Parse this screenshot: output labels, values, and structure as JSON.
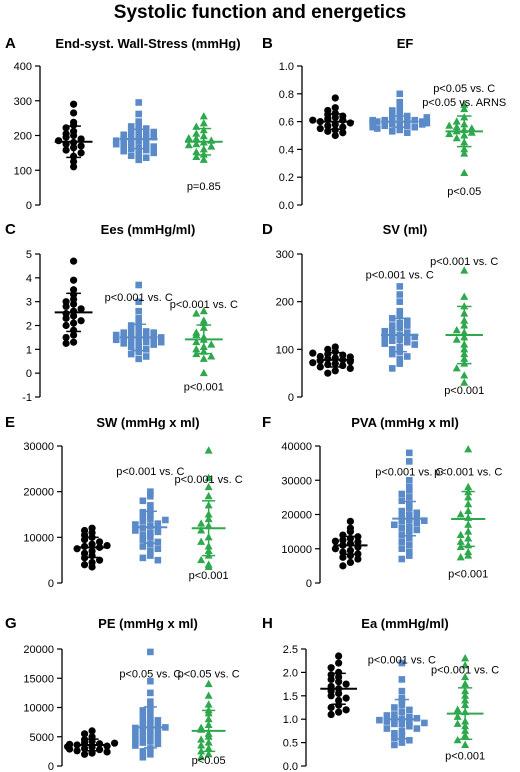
{
  "figure_title": "Systolic function and energetics",
  "colors": {
    "control": "#000000",
    "group2": "#5b8ac9",
    "group3": "#2ea84c"
  },
  "chart_data": [
    {
      "letter": "A",
      "title": "End-syst. Wall-Stress (mmHg)",
      "type": "scatter",
      "ylim": [
        0,
        400
      ],
      "yticks": [
        0,
        100,
        200,
        300,
        400
      ],
      "groups": [
        {
          "mean": 182,
          "sd": 45,
          "values": [
            290,
            265,
            238,
            230,
            222,
            212,
            205,
            200,
            195,
            190,
            185,
            180,
            175,
            170,
            165,
            158,
            150,
            140,
            125,
            110
          ]
        },
        {
          "mean": 190,
          "sd": 28,
          "values": [
            295,
            262,
            240,
            232,
            226,
            220,
            215,
            210,
            206,
            202,
            198,
            194,
            190,
            187,
            184,
            180,
            176,
            172,
            168,
            165,
            162,
            158,
            155,
            150,
            146,
            142,
            136,
            130,
            210,
            195,
            185,
            175
          ]
        },
        {
          "mean": 182,
          "sd": 38,
          "values": [
            255,
            235,
            225,
            215,
            205,
            198,
            190,
            185,
            180,
            175,
            168,
            160,
            152,
            145,
            138,
            130,
            192,
            172
          ]
        }
      ],
      "annotations": [
        {
          "group": 2,
          "y": 55,
          "text": "p=0.85"
        }
      ]
    },
    {
      "letter": "B",
      "title": "EF",
      "type": "scatter",
      "ylim": [
        0,
        1.0
      ],
      "yticks": [
        0.0,
        0.2,
        0.4,
        0.6,
        0.8,
        1.0
      ],
      "groups": [
        {
          "mean": 0.6,
          "sd": 0.055,
          "values": [
            0.77,
            0.7,
            0.68,
            0.66,
            0.65,
            0.64,
            0.63,
            0.62,
            0.61,
            0.6,
            0.59,
            0.58,
            0.57,
            0.56,
            0.55,
            0.54,
            0.53,
            0.52,
            0.5,
            0.61
          ]
        },
        {
          "mean": 0.6,
          "sd": 0.04,
          "values": [
            0.8,
            0.74,
            0.7,
            0.68,
            0.66,
            0.65,
            0.64,
            0.63,
            0.62,
            0.62,
            0.61,
            0.61,
            0.6,
            0.6,
            0.6,
            0.59,
            0.59,
            0.58,
            0.58,
            0.57,
            0.57,
            0.56,
            0.55,
            0.54,
            0.53,
            0.52,
            0.63,
            0.61,
            0.59,
            0.58,
            0.6,
            0.56
          ]
        },
        {
          "mean": 0.53,
          "sd": 0.11,
          "values": [
            0.72,
            0.69,
            0.63,
            0.6,
            0.58,
            0.56,
            0.55,
            0.54,
            0.53,
            0.52,
            0.5,
            0.48,
            0.45,
            0.4,
            0.37,
            0.23,
            0.51,
            0.57
          ]
        }
      ],
      "annotations": [
        {
          "group": 2,
          "y": 0.84,
          "text": "p<0.05 vs. C"
        },
        {
          "group": 2,
          "y": 0.74,
          "text": "p<0.05 vs. ARNS"
        },
        {
          "group": 2,
          "y": 0.1,
          "text": "p<0.05"
        }
      ]
    },
    {
      "letter": "C",
      "title": "Ees (mmHg/ml)",
      "type": "scatter",
      "ylim": [
        -1,
        5
      ],
      "yticks": [
        -1,
        0,
        1,
        2,
        3,
        4,
        5
      ],
      "groups": [
        {
          "mean": 2.55,
          "sd": 0.8,
          "values": [
            4.7,
            3.9,
            3.5,
            3.3,
            3.1,
            3.0,
            2.9,
            2.8,
            2.7,
            2.6,
            2.5,
            2.4,
            2.3,
            2.2,
            2.1,
            2.0,
            1.8,
            1.6,
            1.5,
            1.3,
            1.25
          ]
        },
        {
          "mean": 1.5,
          "sd": 0.55,
          "values": [
            3.7,
            3.0,
            2.6,
            2.3,
            2.1,
            2.0,
            1.9,
            1.8,
            1.75,
            1.7,
            1.65,
            1.6,
            1.55,
            1.5,
            1.45,
            1.4,
            1.35,
            1.3,
            1.25,
            1.2,
            1.15,
            1.1,
            1.0,
            0.9,
            0.8,
            0.7,
            0.6,
            1.6,
            1.4,
            1.5,
            1.7,
            1.3
          ]
        },
        {
          "mean": 1.42,
          "sd": 0.6,
          "values": [
            2.6,
            2.5,
            2.2,
            2.1,
            1.9,
            1.7,
            1.5,
            1.4,
            1.3,
            1.2,
            1.1,
            1.0,
            0.9,
            0.8,
            0.7,
            0.6,
            0.0,
            1.6
          ]
        }
      ],
      "annotations": [
        {
          "group": 1,
          "y": 3.2,
          "text": "p<0.001 vs. C"
        },
        {
          "group": 2,
          "y": 2.9,
          "text": "p<0.001 vs. C"
        },
        {
          "group": 2,
          "y": -0.55,
          "text": "p<0.001"
        }
      ]
    },
    {
      "letter": "D",
      "title": "SV (ml)",
      "type": "scatter",
      "ylim": [
        0,
        300
      ],
      "yticks": [
        0,
        100,
        200,
        300
      ],
      "groups": [
        {
          "mean": 78,
          "sd": 15,
          "values": [
            105,
            100,
            95,
            90,
            88,
            85,
            82,
            80,
            78,
            76,
            74,
            72,
            70,
            68,
            66,
            63,
            60,
            55,
            50,
            84,
            92
          ]
        },
        {
          "mean": 130,
          "sd": 35,
          "values": [
            232,
            215,
            200,
            180,
            170,
            165,
            160,
            155,
            150,
            145,
            140,
            135,
            130,
            128,
            125,
            122,
            120,
            118,
            115,
            112,
            110,
            105,
            100,
            95,
            90,
            85,
            80,
            70,
            60,
            150,
            138,
            126
          ]
        },
        {
          "mean": 130,
          "sd": 60,
          "values": [
            265,
            210,
            190,
            175,
            160,
            150,
            135,
            125,
            110,
            100,
            90,
            80,
            70,
            60,
            45,
            30,
            120,
            140
          ]
        }
      ],
      "annotations": [
        {
          "group": 1,
          "y": 257,
          "text": "p<0.001 vs. C"
        },
        {
          "group": 2,
          "y": 285,
          "text": "p<0.001 vs. C"
        },
        {
          "group": 2,
          "y": 15,
          "text": "p<0.001"
        }
      ]
    },
    {
      "letter": "E",
      "title": "SW (mmHg x ml)",
      "type": "scatter",
      "ylim": [
        0,
        30000
      ],
      "yticks": [
        0,
        10000,
        20000,
        30000
      ],
      "groups": [
        {
          "mean": 7800,
          "sd": 2200,
          "values": [
            12000,
            11500,
            11000,
            10500,
            10000,
            9500,
            9000,
            8500,
            8000,
            7800,
            7500,
            7000,
            6500,
            6000,
            5500,
            5000,
            4500,
            4000,
            3500,
            8200
          ]
        },
        {
          "mean": 12200,
          "sd": 3500,
          "values": [
            20000,
            19000,
            18000,
            17000,
            16000,
            15500,
            15000,
            14500,
            14000,
            13500,
            13000,
            12500,
            12000,
            11800,
            11500,
            11000,
            10500,
            10000,
            9500,
            9000,
            8500,
            8000,
            7500,
            7000,
            6000,
            5500,
            5000,
            12800,
            11200,
            13800
          ]
        },
        {
          "mean": 12000,
          "sd": 6000,
          "values": [
            29000,
            23000,
            21000,
            19000,
            17000,
            15000,
            14000,
            12500,
            11500,
            10000,
            9000,
            8000,
            7000,
            6000,
            5000,
            4000,
            3500,
            13000
          ]
        }
      ],
      "annotations": [
        {
          "group": 1,
          "y": 24500,
          "text": "p<0.001 vs. C"
        },
        {
          "group": 2,
          "y": 22800,
          "text": "p<0.001 vs. C"
        },
        {
          "group": 2,
          "y": 1700,
          "text": "p<0.001"
        }
      ]
    },
    {
      "letter": "F",
      "title": "PVA (mmHg x ml)",
      "type": "scatter",
      "ylim": [
        0,
        40000
      ],
      "yticks": [
        0,
        10000,
        20000,
        30000,
        40000
      ],
      "groups": [
        {
          "mean": 11000,
          "sd": 2600,
          "values": [
            18000,
            16000,
            15000,
            14000,
            13500,
            13000,
            12500,
            12000,
            11500,
            11000,
            10500,
            10000,
            9500,
            9000,
            8500,
            8000,
            7500,
            7000,
            6000,
            5000,
            12200
          ]
        },
        {
          "mean": 18800,
          "sd": 5000,
          "values": [
            38000,
            35500,
            30000,
            28000,
            27000,
            26000,
            25000,
            24000,
            23000,
            22000,
            21000,
            20000,
            19500,
            19000,
            18500,
            18000,
            17500,
            17000,
            16500,
            16000,
            15500,
            15000,
            14000,
            13000,
            12000,
            11000,
            10000,
            9000,
            8000,
            7000,
            20500,
            18200
          ]
        },
        {
          "mean": 18700,
          "sd": 8000,
          "values": [
            39000,
            28000,
            26500,
            25000,
            23000,
            21000,
            19000,
            17000,
            15000,
            14000,
            13000,
            12000,
            11000,
            10500,
            9000,
            8000,
            7500,
            20000
          ]
        }
      ],
      "annotations": [
        {
          "group": 1,
          "y": 32500,
          "text": "p<0.001 vs. C"
        },
        {
          "group": 2,
          "y": 32500,
          "text": "p<0.001 vs. C"
        },
        {
          "group": 2,
          "y": 2800,
          "text": "p<0.001"
        }
      ]
    },
    {
      "letter": "G",
      "title": "PE (mmHg x ml)",
      "type": "scatter",
      "ylim": [
        0,
        20000
      ],
      "yticks": [
        0,
        5000,
        10000,
        15000,
        20000
      ],
      "groups": [
        {
          "mean": 3600,
          "sd": 1000,
          "values": [
            6000,
            5500,
            5000,
            4500,
            4200,
            4000,
            3800,
            3600,
            3400,
            3200,
            3000,
            2800,
            2600,
            2400,
            2200,
            2000,
            3700,
            3900,
            3300,
            2900
          ]
        },
        {
          "mean": 6600,
          "sd": 3500,
          "values": [
            19500,
            14500,
            12500,
            11000,
            10000,
            9500,
            9000,
            8500,
            8000,
            7500,
            7200,
            7000,
            6800,
            6500,
            6200,
            6000,
            5800,
            5500,
            5200,
            5000,
            4800,
            4500,
            4200,
            4000,
            3800,
            3500,
            3000,
            2500,
            2000,
            1500,
            6600,
            7800
          ]
        },
        {
          "mean": 6000,
          "sd": 3500,
          "values": [
            14000,
            12000,
            10500,
            9500,
            9000,
            8000,
            7000,
            6500,
            5500,
            5000,
            4500,
            4000,
            3500,
            3000,
            2500,
            2000,
            1500,
            6200
          ]
        }
      ],
      "annotations": [
        {
          "group": 1,
          "y": 15800,
          "text": "p<0.05 vs. C"
        },
        {
          "group": 2,
          "y": 15800,
          "text": "p<0.05 vs. C"
        },
        {
          "group": 2,
          "y": 1000,
          "text": "p<0.05"
        }
      ]
    },
    {
      "letter": "H",
      "title": "Ea (mmHg/ml)",
      "type": "scatter",
      "ylim": [
        0,
        2.5
      ],
      "yticks": [
        0.0,
        0.5,
        1.0,
        1.5,
        2.0,
        2.5
      ],
      "groups": [
        {
          "mean": 1.65,
          "sd": 0.33,
          "values": [
            2.35,
            2.2,
            2.1,
            2.0,
            1.95,
            1.9,
            1.85,
            1.8,
            1.7,
            1.65,
            1.6,
            1.55,
            1.5,
            1.45,
            1.4,
            1.3,
            1.25,
            1.2,
            1.15,
            1.1,
            1.75
          ]
        },
        {
          "mean": 1.0,
          "sd": 0.42,
          "values": [
            2.2,
            1.85,
            1.6,
            1.45,
            1.4,
            1.3,
            1.25,
            1.2,
            1.15,
            1.1,
            1.05,
            1.0,
            1.0,
            0.95,
            0.95,
            0.9,
            0.9,
            0.85,
            0.8,
            0.8,
            0.75,
            0.7,
            0.65,
            0.6,
            0.55,
            0.5,
            0.45,
            1.02,
            0.98,
            0.92,
            1.08
          ]
        },
        {
          "mean": 1.12,
          "sd": 0.55,
          "values": [
            2.3,
            2.15,
            1.9,
            1.75,
            1.6,
            1.5,
            1.4,
            1.3,
            1.15,
            1.05,
            0.95,
            0.85,
            0.75,
            0.65,
            0.55,
            0.45,
            1.2,
            0.9
          ]
        }
      ],
      "annotations": [
        {
          "group": 1,
          "y": 2.28,
          "text": "p<0.001 vs. C"
        },
        {
          "group": 2,
          "y": 2.06,
          "text": "p<0.001 vs. C"
        },
        {
          "group": 2,
          "y": 0.22,
          "text": "p<0.001"
        }
      ]
    }
  ]
}
